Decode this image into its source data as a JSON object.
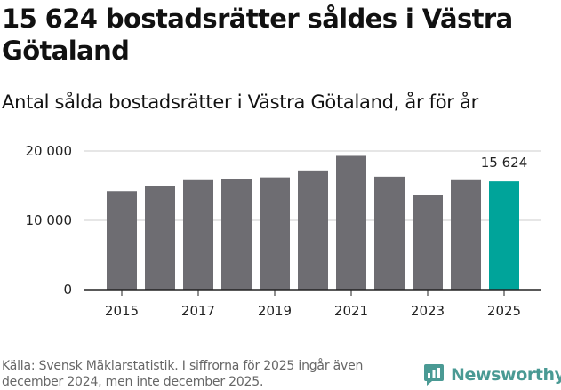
{
  "headline": "15 624 bostadsrätter såldes i Västra Götaland",
  "chart_data": {
    "type": "bar",
    "title": "Antal sålda bostadsrätter i Västra Götaland, år för år",
    "xlabel": "",
    "ylabel": "",
    "categories": [
      "2015",
      "2016",
      "2017",
      "2018",
      "2019",
      "2020",
      "2021",
      "2022",
      "2023",
      "2024",
      "2025"
    ],
    "values": [
      14200,
      15000,
      15800,
      16000,
      16200,
      17200,
      19300,
      16300,
      13700,
      15800,
      15624
    ],
    "x_tick_labels": [
      "2015",
      "2017",
      "2019",
      "2021",
      "2023",
      "2025"
    ],
    "y_ticks": [
      0,
      10000,
      20000
    ],
    "y_tick_labels": [
      "0",
      "10 000",
      "20 000"
    ],
    "ylim": [
      0,
      20000
    ],
    "grid": true,
    "highlight_category": "2025",
    "highlight_label": "15 624",
    "colors": {
      "bar": "#6e6d72",
      "highlight": "#00a49a",
      "grid": "#cccccc",
      "axis": "#222222"
    }
  },
  "source": "Källa: Svensk Mäklarstatistik. I siffrorna för 2025 ingår även december 2024, men inte december 2025.",
  "brand": {
    "name": "Newsworthy",
    "icon": "newsworthy-logo-icon",
    "color": "#4a9a94"
  }
}
